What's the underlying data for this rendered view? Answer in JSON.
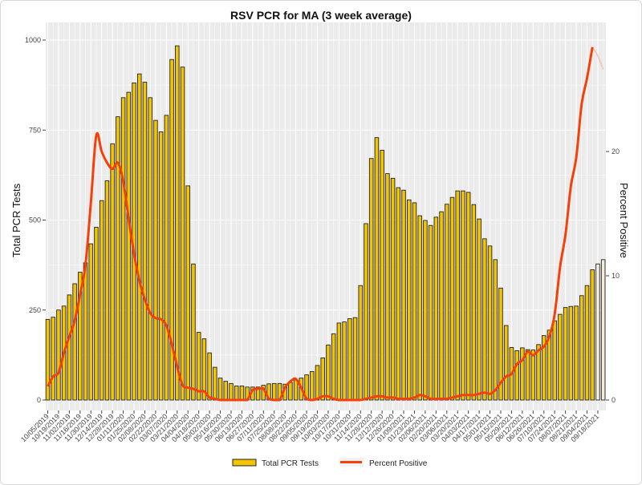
{
  "chart_data": {
    "type": "bar+line",
    "title": "RSV PCR for MA (3 week average)",
    "ylabel": "Total PCR Tests",
    "y2label": "Percent Positive",
    "ylim": [
      0,
      1000
    ],
    "yticks": [
      0,
      250,
      500,
      750,
      1000
    ],
    "y2ticks": [
      0,
      10,
      20
    ],
    "grid": true,
    "legend_position": "bottom",
    "x_tick_labels": [
      "10/05/2019",
      "10/19/2019",
      "11/02/2019",
      "11/16/2019",
      "11/30/2019",
      "12/14/2019",
      "12/28/2019",
      "01/11/2020",
      "01/25/2020",
      "02/08/2020",
      "02/22/2020",
      "03/07/2020",
      "03/21/2020",
      "04/04/2020",
      "04/18/2020",
      "05/02/2020",
      "05/16/2020",
      "05/30/2020",
      "06/13/2020",
      "06/27/2020",
      "07/11/2020",
      "07/25/2020",
      "08/08/2020",
      "08/22/2020",
      "09/05/2020",
      "09/19/2020",
      "10/03/2020",
      "10/17/2020",
      "10/31/2020",
      "11/14/2020",
      "11/28/2020",
      "12/12/2020",
      "12/26/2020",
      "01/09/2021",
      "01/23/2021",
      "02/06/2021",
      "02/20/2021",
      "03/06/2021",
      "03/20/2021",
      "04/03/2021",
      "04/17/2021",
      "05/01/2021",
      "05/15/2021",
      "05/29/2021",
      "06/12/2021",
      "06/26/2021",
      "07/10/2021",
      "07/24/2021",
      "08/07/2021",
      "08/21/2021",
      "09/04/2021",
      "09/18/2021"
    ],
    "series": [
      {
        "name": "Total PCR Tests",
        "kind": "bar",
        "color": "#f2c500",
        "provisional_color": "#f3efdc",
        "provisional_last_n": 2,
        "values": [
          224,
          230,
          250,
          261,
          292,
          323,
          355,
          381,
          434,
          480,
          554,
          609,
          712,
          787,
          840,
          855,
          881,
          906,
          883,
          840,
          777,
          745,
          791,
          946,
          984,
          925,
          595,
          378,
          188,
          170,
          131,
          91,
          61,
          52,
          46,
          39,
          39,
          36,
          36,
          36,
          41,
          45,
          46,
          46,
          44,
          49,
          56,
          61,
          70,
          79,
          96,
          117,
          153,
          184,
          214,
          217,
          226,
          229,
          318,
          490,
          671,
          729,
          694,
          629,
          616,
          590,
          583,
          556,
          548,
          512,
          499,
          485,
          508,
          523,
          544,
          563,
          581,
          581,
          577,
          543,
          503,
          448,
          428,
          390,
          311,
          207,
          146,
          137,
          145,
          140,
          139,
          154,
          179,
          194,
          220,
          238,
          257,
          260,
          261,
          290,
          318,
          362,
          378,
          390
        ]
      },
      {
        "name": "Percent Positive",
        "kind": "line",
        "axis": "right",
        "color": "#f5400a",
        "provisional_last_n": 2,
        "values": [
          1.1,
          1.9,
          2.2,
          3.8,
          5.1,
          6.4,
          8.5,
          10.9,
          15.9,
          21.3,
          20.0,
          19.1,
          18.6,
          19.1,
          17.6,
          14.6,
          11.8,
          9.6,
          8.1,
          7.0,
          6.6,
          6.5,
          6.0,
          4.5,
          2.7,
          1.2,
          1.0,
          0.9,
          0.7,
          0.7,
          0.2,
          0.1,
          0,
          0,
          0,
          0,
          0,
          0,
          0.8,
          0.9,
          0.9,
          0.1,
          0,
          0,
          1.0,
          1.5,
          1.7,
          1.0,
          0.1,
          0,
          0.1,
          0.3,
          0.3,
          0.1,
          0,
          0,
          0,
          0,
          0,
          0.1,
          0.2,
          0.3,
          0.3,
          0.2,
          0.2,
          0.1,
          0.1,
          0.1,
          0.2,
          0.4,
          0.3,
          0.1,
          0.1,
          0.1,
          0.1,
          0.2,
          0.3,
          0.4,
          0.4,
          0.4,
          0.5,
          0.6,
          0.5,
          0.8,
          1.4,
          1.9,
          2.1,
          2.9,
          3.2,
          3.9,
          3.6,
          4.0,
          4.3,
          5.1,
          6.9,
          10.7,
          13.3,
          17.2,
          19.5,
          23.8,
          25.9,
          28.4,
          27.7,
          26.6
        ]
      }
    ]
  }
}
